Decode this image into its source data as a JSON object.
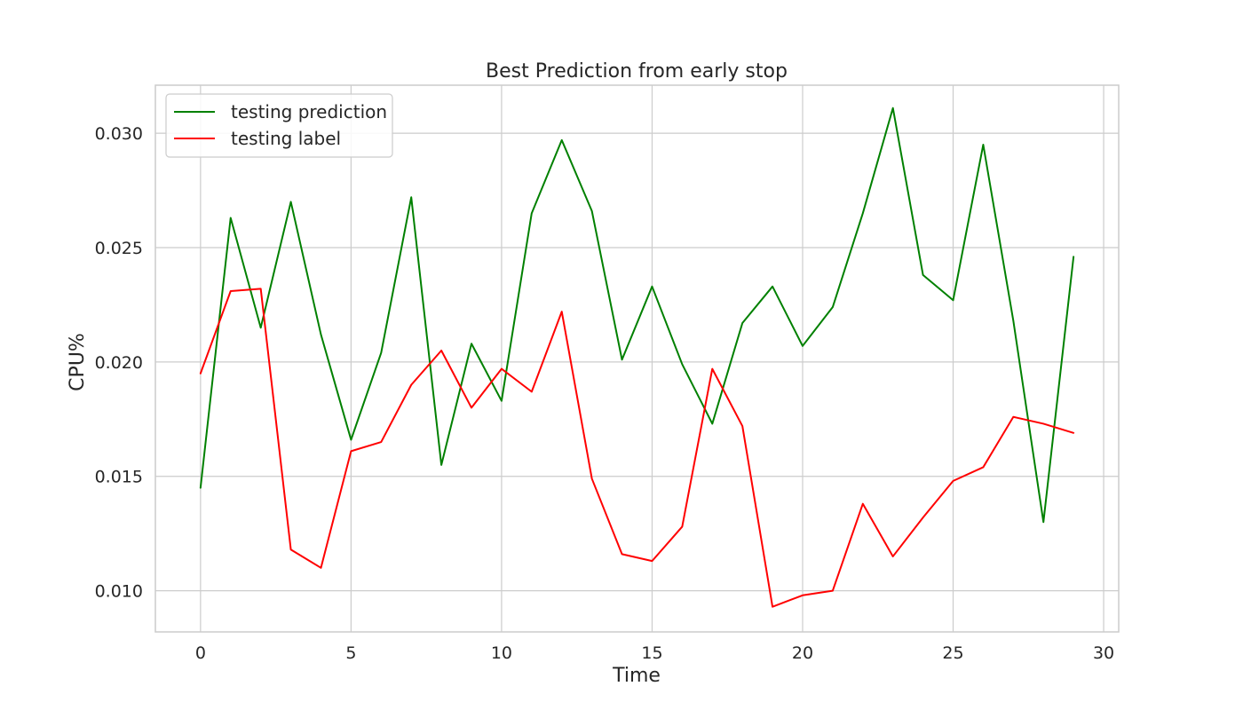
{
  "chart_data": {
    "type": "line",
    "title": "Best Prediction from early stop",
    "xlabel": "Time",
    "ylabel": "CPU%",
    "xlim": [
      -1.5,
      30.5
    ],
    "ylim": [
      0.0082,
      0.0321
    ],
    "xticks": [
      0,
      5,
      10,
      15,
      20,
      25,
      30
    ],
    "yticks": [
      0.01,
      0.015,
      0.02,
      0.025,
      0.03
    ],
    "xtick_labels": [
      "0",
      "5",
      "10",
      "15",
      "20",
      "25",
      "30"
    ],
    "ytick_labels": [
      "0.010",
      "0.015",
      "0.020",
      "0.025",
      "0.030"
    ],
    "grid": true,
    "legend_position": "top-left",
    "x": [
      0,
      1,
      2,
      3,
      4,
      5,
      6,
      7,
      8,
      9,
      10,
      11,
      12,
      13,
      14,
      15,
      16,
      17,
      18,
      19,
      20,
      21,
      22,
      23,
      24,
      25,
      26,
      27,
      28,
      29
    ],
    "series": [
      {
        "name": "testing prediction",
        "color": "#008000",
        "values": [
          0.0145,
          0.0263,
          0.0215,
          0.027,
          0.0212,
          0.0166,
          0.0204,
          0.0272,
          0.0155,
          0.0208,
          0.0183,
          0.0265,
          0.0297,
          0.0266,
          0.0201,
          0.0233,
          0.0199,
          0.0173,
          0.0217,
          0.0233,
          0.0207,
          0.0224,
          0.0265,
          0.0311,
          0.0238,
          0.0227,
          0.0295,
          0.0218,
          0.013,
          0.0246
        ]
      },
      {
        "name": "testing label",
        "color": "#ff0000",
        "values": [
          0.0195,
          0.0231,
          0.0232,
          0.0118,
          0.011,
          0.0161,
          0.0165,
          0.019,
          0.0205,
          0.018,
          0.0197,
          0.0187,
          0.0222,
          0.0149,
          0.0116,
          0.0113,
          0.0128,
          0.0197,
          0.0172,
          0.0093,
          0.0098,
          0.01,
          0.0138,
          0.0115,
          0.0132,
          0.0148,
          0.0154,
          0.0176,
          0.0173,
          0.0169
        ]
      }
    ]
  }
}
